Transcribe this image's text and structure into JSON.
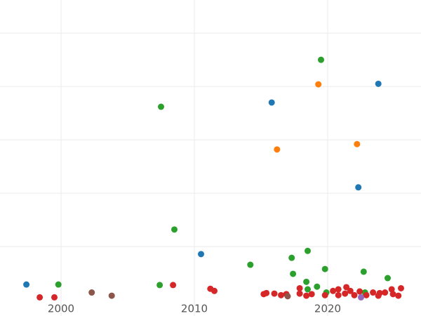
{
  "chart_data": {
    "type": "scatter",
    "xlim": [
      1995.42,
      2027
    ],
    "ylim": [
      -30,
      562
    ],
    "xticks": [
      2000,
      2010,
      2020
    ],
    "yticks": [
      100,
      200,
      300,
      400,
      500
    ],
    "grid": true,
    "series": [
      {
        "color": "#1f77b4",
        "x": [
          1997.4,
          2015.8,
          2023.8,
          2022.3,
          2010.5
        ],
        "values": [
          29,
          370,
          405,
          211,
          86
        ]
      },
      {
        "color": "#ff7f0e",
        "x": [
          2019.3,
          2016.2,
          2022.2
        ],
        "values": [
          404,
          282,
          292
        ]
      },
      {
        "color": "#2ca02c",
        "x": [
          2019.5,
          2007.5,
          2008.5,
          1999.8,
          2007.4,
          2014.2,
          2017.3,
          2018.5,
          2017.4,
          2019.8,
          2018.4,
          2022.7,
          2024.5,
          2019.2,
          2018.5,
          2022.8,
          2019.9
        ],
        "values": [
          450,
          362,
          132,
          29,
          28,
          66,
          79,
          92,
          49,
          58,
          34,
          53,
          41,
          25,
          20,
          14,
          14
        ]
      },
      {
        "color": "#d62728",
        "x": [
          1998.4,
          1999.5,
          2008.4,
          2011.2,
          2011.5,
          2015.2,
          2015.4,
          2016,
          2016.5,
          2016.9,
          2017.9,
          2017.9,
          2018.4,
          2018.8,
          2019.8,
          2020.4,
          2020.8,
          2020.8,
          2021.4,
          2021.3,
          2021.7,
          2022,
          2022.4,
          2022.9,
          2023.4,
          2023.8,
          2023.9,
          2024.3,
          2024.8,
          2024.9,
          2025.3,
          2025.5
        ],
        "values": [
          5,
          5,
          28,
          21,
          17,
          11,
          13,
          12,
          9,
          11,
          22,
          12,
          8,
          11,
          9,
          17,
          20,
          9,
          24,
          12,
          17,
          9,
          16,
          9,
          14,
          8,
          13,
          14,
          20,
          11,
          8,
          22
        ]
      },
      {
        "color": "#8c564b",
        "x": [
          2002.3,
          2003.8,
          2017
        ],
        "values": [
          14,
          8,
          7
        ]
      },
      {
        "color": "#9467bd",
        "x": [
          2022.5
        ],
        "values": [
          5
        ]
      }
    ]
  }
}
